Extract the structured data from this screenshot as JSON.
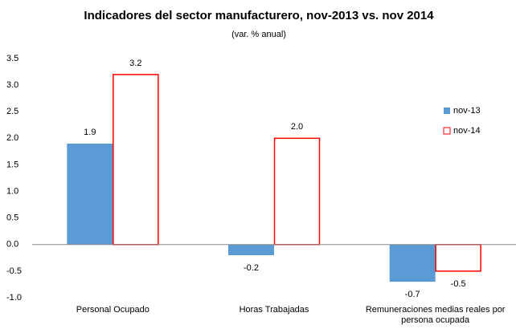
{
  "chart_data": {
    "type": "bar",
    "title": "Indicadores del sector manufacturero, nov-2013 vs. nov 2014",
    "subtitle": "(var. % anual)",
    "categories": [
      "Personal Ocupado",
      "Horas Trabajadas",
      "Remuneraciones medias reales por persona ocupada"
    ],
    "series": [
      {
        "name": "nov-13",
        "color": "#5b9bd5",
        "values": [
          1.9,
          -0.2,
          -0.7
        ],
        "value_labels": [
          "1.9",
          "-0.2",
          "-0.7"
        ]
      },
      {
        "name": "nov-14",
        "color": "#ff0000",
        "values": [
          3.2,
          2.0,
          -0.5
        ],
        "value_labels": [
          "3.2",
          "2.0",
          "-0.5"
        ]
      }
    ],
    "ylim": [
      -1.0,
      3.5
    ],
    "yticks": [
      {
        "value": -1.0,
        "label": "-1.0"
      },
      -0.5,
      {
        "value": 0,
        "label": "0.0"
      },
      0.5,
      {
        "value": 1.0,
        "label": "1.0"
      },
      1.5,
      {
        "value": 2.0,
        "label": "2.0"
      },
      2.5,
      {
        "value": 3.0,
        "label": "3.0"
      },
      3.5
    ],
    "grid": false,
    "legend": "right"
  }
}
